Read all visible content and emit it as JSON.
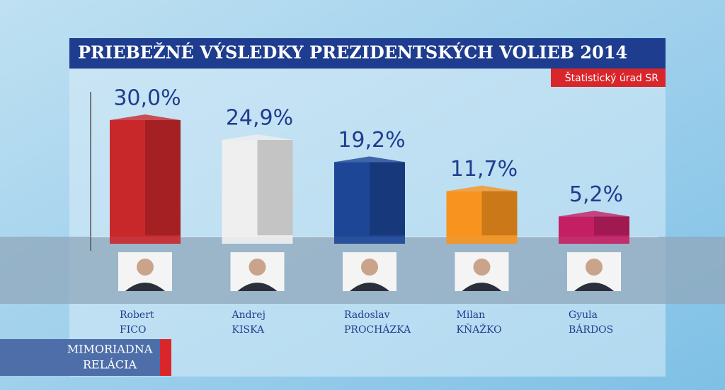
{
  "chart_data": {
    "type": "bar",
    "title": "PRIEBEŽNÉ VÝSLEDKY PREZIDENTSKÝCH VOLIEB 2014",
    "source": "Štatistický úrad SR",
    "categories": [
      [
        "Robert",
        "FICO"
      ],
      [
        "Andrej",
        "KISKA"
      ],
      [
        "Radoslav",
        "PROCHÁZKA"
      ],
      [
        "Milan",
        "KŇAŽKO"
      ],
      [
        "Gyula",
        "BÁRDOS"
      ]
    ],
    "values": [
      30.0,
      24.9,
      19.2,
      11.7,
      5.2
    ],
    "value_labels": [
      "30,0%",
      "24,9%",
      "19,2%",
      "11,7%",
      "5,2%"
    ],
    "colors": [
      "#c9282b",
      "#efefef",
      "#1d4696",
      "#f7931e",
      "#c41f63"
    ]
  },
  "overlay": [
    "MIMORIADNA",
    "RELÁCIA"
  ]
}
